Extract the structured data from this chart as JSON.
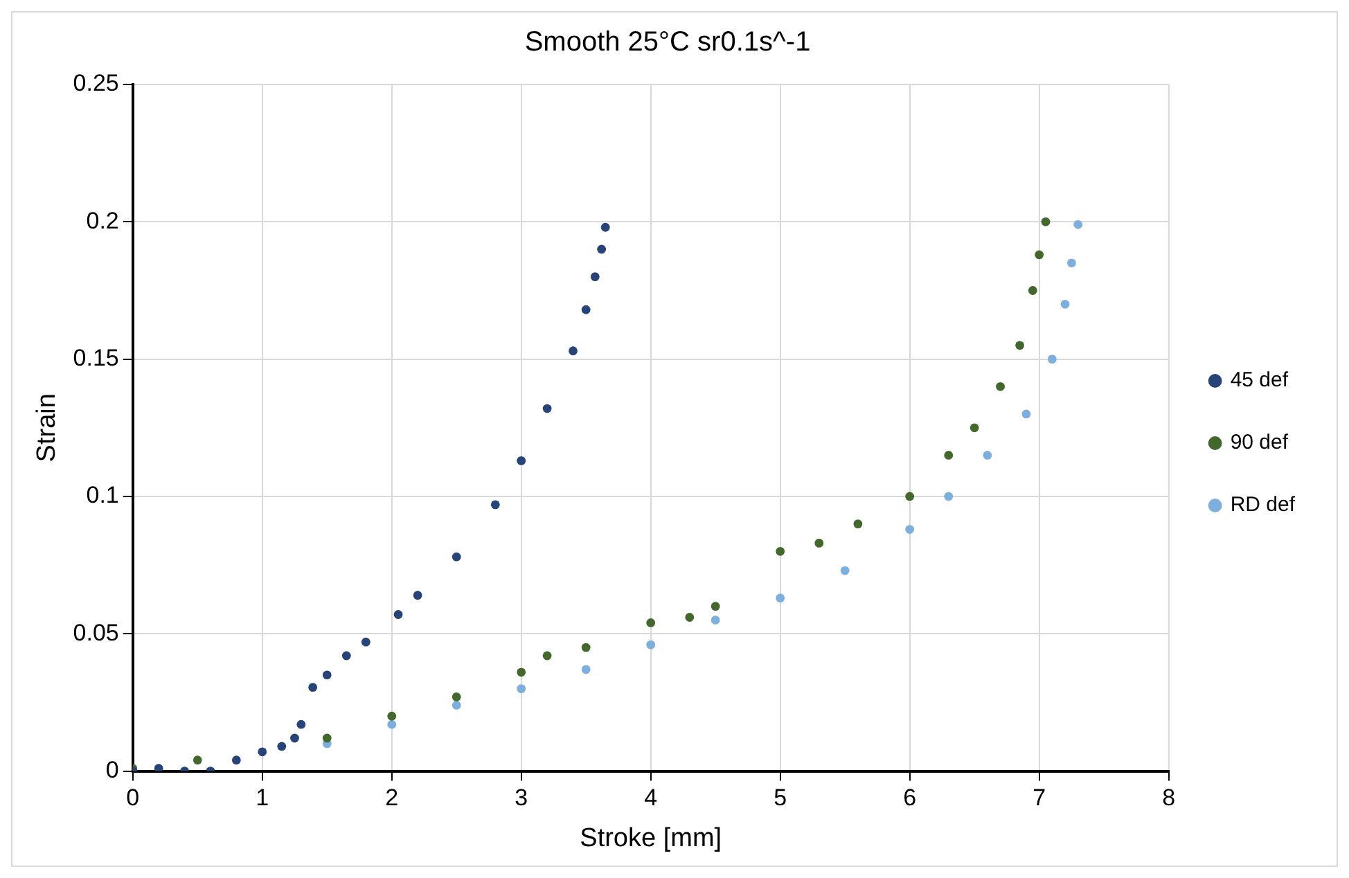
{
  "chart_data": {
    "type": "scatter",
    "title": "Smooth 25°C sr0.1s^-1",
    "xlabel": "Stroke [mm]",
    "ylabel": "Strain",
    "xlim": [
      0,
      8
    ],
    "xticks": [
      0,
      1,
      2,
      3,
      4,
      5,
      6,
      7,
      8
    ],
    "ylim": [
      0,
      0.25
    ],
    "yticks": [
      0,
      0.05,
      0.1,
      0.15,
      0.2,
      0.25
    ],
    "grid": true,
    "legend": "right",
    "marker": "circle",
    "series": [
      {
        "name": "45 def",
        "color": "#264478",
        "x": [
          0,
          0.2,
          0.4,
          0.6,
          0.8,
          1.0,
          1.15,
          1.25,
          1.3,
          1.39,
          1.5,
          1.65,
          1.8,
          2.05,
          2.2,
          2.5,
          2.8,
          3.0,
          3.2,
          3.4,
          3.5,
          3.57,
          3.62,
          3.65
        ],
        "values": [
          0,
          0.001,
          0,
          0,
          0.004,
          0.007,
          0.009,
          0.012,
          0.017,
          0.0305,
          0.035,
          0.042,
          0.047,
          0.057,
          0.064,
          0.078,
          0.097,
          0.113,
          0.132,
          0.153,
          0.168,
          0.18,
          0.19,
          0.198
        ]
      },
      {
        "name": "90 def",
        "color": "#43682b",
        "x": [
          0,
          0.5,
          1.0,
          1.5,
          2.0,
          2.5,
          3.0,
          3.2,
          3.5,
          4.0,
          4.3,
          4.5,
          5.0,
          5.3,
          5.6,
          6.0,
          6.3,
          6.5,
          6.7,
          6.85,
          6.95,
          7.0,
          7.05
        ],
        "values": [
          0.001,
          0.004,
          null,
          0.012,
          0.02,
          0.027,
          0.036,
          0.042,
          0.045,
          0.054,
          0.056,
          0.06,
          0.08,
          0.083,
          0.09,
          0.1,
          0.115,
          0.125,
          0.14,
          0.155,
          0.175,
          0.188,
          0.2
        ]
      },
      {
        "name": "RD def",
        "color": "#7cafdd",
        "x": [
          0,
          0.5,
          1.0,
          1.5,
          2.0,
          2.5,
          3.0,
          3.5,
          4.0,
          4.5,
          5.0,
          5.5,
          6.0,
          6.3,
          6.6,
          6.9,
          7.1,
          7.2,
          7.25,
          7.3
        ],
        "values": [
          0,
          null,
          null,
          0.01,
          0.017,
          0.024,
          0.03,
          0.037,
          0.046,
          0.055,
          0.063,
          0.073,
          0.088,
          0.1,
          0.115,
          0.13,
          0.15,
          0.17,
          0.185,
          0.199
        ]
      }
    ]
  }
}
